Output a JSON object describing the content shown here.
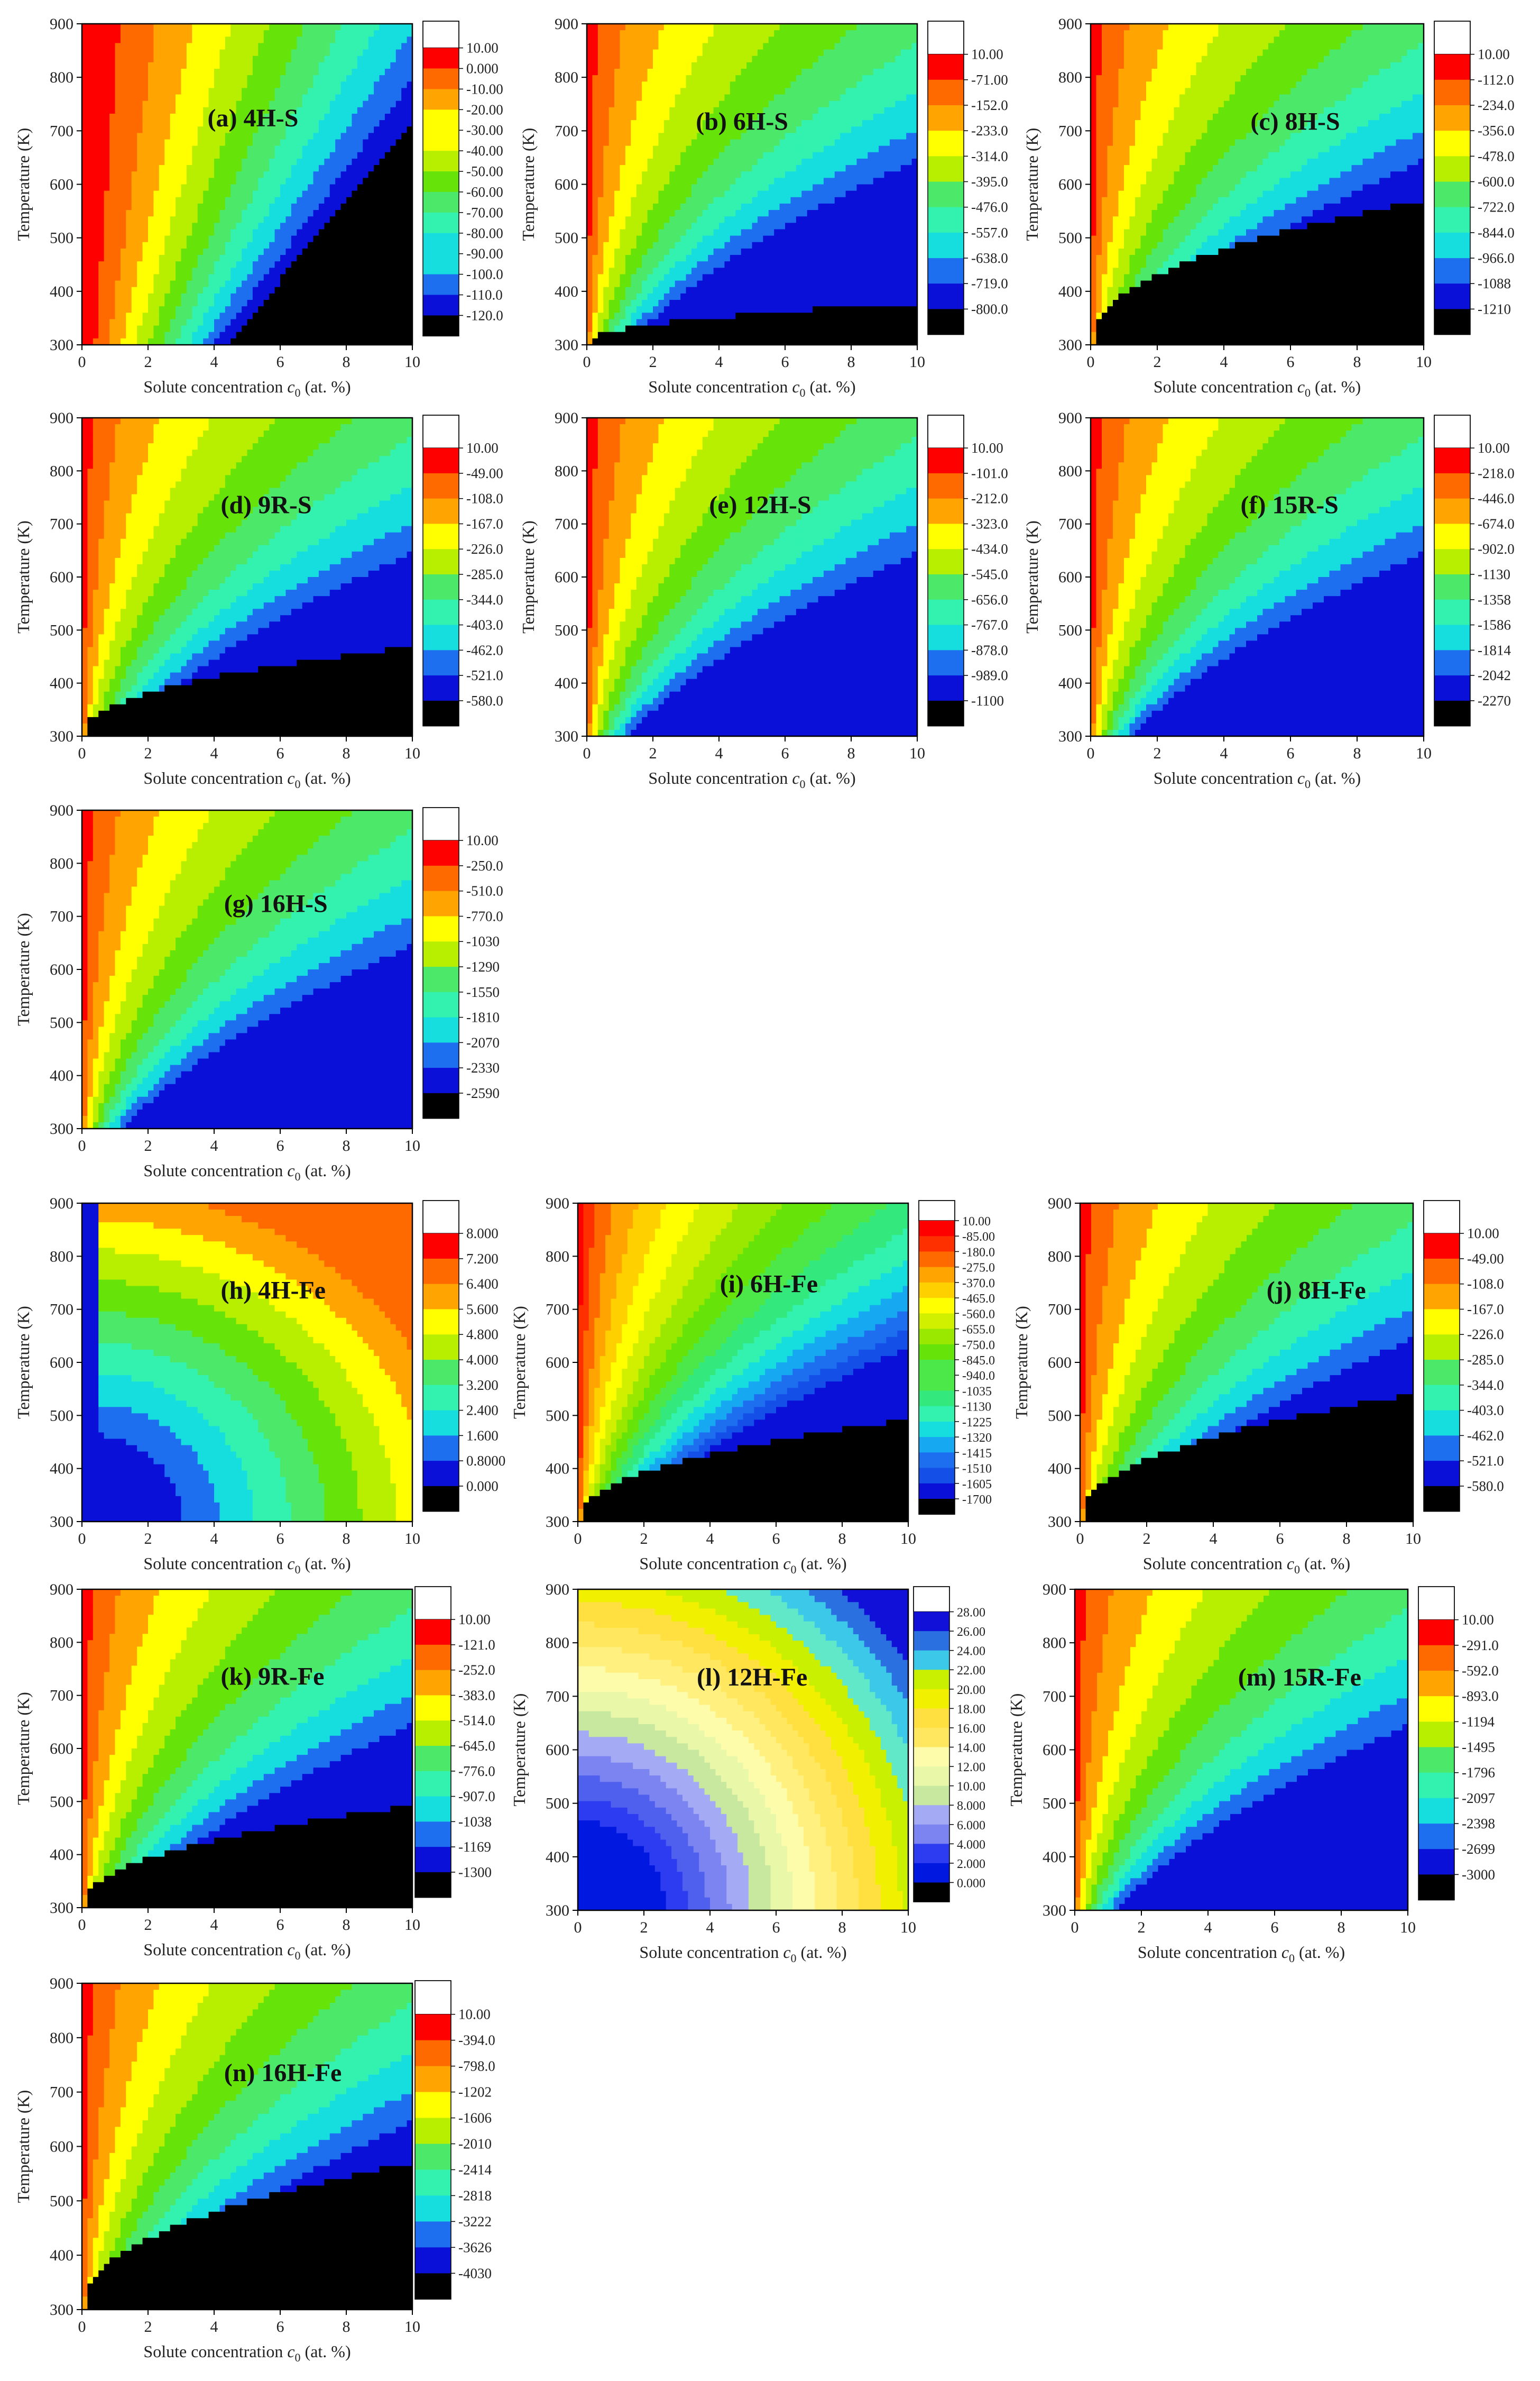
{
  "colors": {
    "ramp12": [
      "#000000",
      "#0a10d8",
      "#1e6ff0",
      "#16dede",
      "#33f2b0",
      "#4ce86a",
      "#66e40a",
      "#b8ee00",
      "#ffff00",
      "#ffa400",
      "#ff6a00",
      "#ff0000"
    ],
    "ramp_fine": [
      "#000000",
      "#0a10d8",
      "#1450e8",
      "#1e6ff0",
      "#16a8f0",
      "#16dede",
      "#33f2b0",
      "#33e87c",
      "#4ce84a",
      "#66e40a",
      "#9ae800",
      "#d0f000",
      "#ffff00",
      "#ffd000",
      "#ffa400",
      "#ff6a00",
      "#ff3000",
      "#ff0000"
    ],
    "ramp_l": [
      "#000000",
      "#0018e0",
      "#2d3cf0",
      "#5060ee",
      "#7b84f0",
      "#a5aaf4",
      "#c8e8a0",
      "#e8f8a8",
      "#fcfcaa",
      "#fff080",
      "#ffe860",
      "#ffe040",
      "#f0f000",
      "#c8f000",
      "#60e8c8",
      "#3cc8e8",
      "#2a70e0",
      "#1010d8"
    ],
    "top_box": "#ffffff"
  },
  "chart_data": [
    {
      "id": "a",
      "type": "heatmap",
      "title": "(a) 4H-S",
      "xlabel": "Solute concentration c0 (at. %)",
      "ylabel": "Temperature (K)",
      "xlim": [
        0,
        10
      ],
      "ylim": [
        300,
        900
      ],
      "xticks": [
        "0",
        "2",
        "4",
        "6",
        "8",
        "10"
      ],
      "yticks": [
        "300",
        "400",
        "500",
        "600",
        "700",
        "800",
        "900"
      ],
      "levels": [
        "10.00",
        "0.000",
        "-10.00",
        "-20.00",
        "-30.00",
        "-40.00",
        "-50.00",
        "-60.00",
        "-70.00",
        "-80.00",
        "-90.00",
        "-100.0",
        "-110.0",
        "-120.0"
      ],
      "palette": "ramp12"
    },
    {
      "id": "b",
      "type": "heatmap",
      "title": "(b) 6H-S",
      "xlabel": "Solute concentration c0 (at. %)",
      "ylabel": "Temperature (K)",
      "xlim": [
        0,
        10
      ],
      "ylim": [
        300,
        900
      ],
      "xticks": [
        "0",
        "2",
        "4",
        "6",
        "8",
        "10"
      ],
      "yticks": [
        "300",
        "400",
        "500",
        "600",
        "700",
        "800",
        "900"
      ],
      "levels": [
        "10.00",
        "-71.00",
        "-152.0",
        "-233.0",
        "-314.0",
        "-395.0",
        "-476.0",
        "-557.0",
        "-638.0",
        "-719.0",
        "-800.0"
      ],
      "palette": "ramp12"
    },
    {
      "id": "c",
      "type": "heatmap",
      "title": "(c) 8H-S",
      "xlabel": "Solute concentration c0 (at. %)",
      "ylabel": "Temperature (K)",
      "xlim": [
        0,
        10
      ],
      "ylim": [
        300,
        900
      ],
      "xticks": [
        "0",
        "2",
        "4",
        "6",
        "8",
        "10"
      ],
      "yticks": [
        "300",
        "400",
        "500",
        "600",
        "700",
        "800",
        "900"
      ],
      "levels": [
        "10.00",
        "-112.0",
        "-234.0",
        "-356.0",
        "-478.0",
        "-600.0",
        "-722.0",
        "-844.0",
        "-966.0",
        "-1088",
        "-1210"
      ],
      "palette": "ramp12"
    },
    {
      "id": "d",
      "type": "heatmap",
      "title": "(d) 9R-S",
      "xlabel": "Solute concentration c0 (at. %)",
      "ylabel": "Temperature (K)",
      "xlim": [
        0,
        10
      ],
      "ylim": [
        300,
        900
      ],
      "xticks": [
        "0",
        "2",
        "4",
        "6",
        "8",
        "10"
      ],
      "yticks": [
        "300",
        "400",
        "500",
        "600",
        "700",
        "800",
        "900"
      ],
      "levels": [
        "10.00",
        "-49.00",
        "-108.0",
        "-167.0",
        "-226.0",
        "-285.0",
        "-344.0",
        "-403.0",
        "-462.0",
        "-521.0",
        "-580.0"
      ],
      "palette": "ramp12"
    },
    {
      "id": "e",
      "type": "heatmap",
      "title": "(e) 12H-S",
      "xlabel": "Solute concentration c0 (at. %)",
      "ylabel": "Temperature (K)",
      "xlim": [
        0,
        10
      ],
      "ylim": [
        300,
        900
      ],
      "xticks": [
        "0",
        "2",
        "4",
        "6",
        "8",
        "10"
      ],
      "yticks": [
        "300",
        "400",
        "500",
        "600",
        "700",
        "800",
        "900"
      ],
      "levels": [
        "10.00",
        "-101.0",
        "-212.0",
        "-323.0",
        "-434.0",
        "-545.0",
        "-656.0",
        "-767.0",
        "-878.0",
        "-989.0",
        "-1100"
      ],
      "palette": "ramp12"
    },
    {
      "id": "f",
      "type": "heatmap",
      "title": "(f) 15R-S",
      "xlabel": "Solute concentration c0 (at. %)",
      "ylabel": "Temperature (K)",
      "xlim": [
        0,
        10
      ],
      "ylim": [
        300,
        900
      ],
      "xticks": [
        "0",
        "2",
        "4",
        "6",
        "8",
        "10"
      ],
      "yticks": [
        "300",
        "400",
        "500",
        "600",
        "700",
        "800",
        "900"
      ],
      "levels": [
        "10.00",
        "-218.0",
        "-446.0",
        "-674.0",
        "-902.0",
        "-1130",
        "-1358",
        "-1586",
        "-1814",
        "-2042",
        "-2270"
      ],
      "palette": "ramp12"
    },
    {
      "id": "g",
      "type": "heatmap",
      "title": "(g) 16H-S",
      "xlabel": "Solute concentration c0 (at. %)",
      "ylabel": "Temperature (K)",
      "xlim": [
        0,
        10
      ],
      "ylim": [
        300,
        900
      ],
      "xticks": [
        "0",
        "2",
        "4",
        "6",
        "8",
        "10"
      ],
      "yticks": [
        "300",
        "400",
        "500",
        "600",
        "700",
        "800",
        "900"
      ],
      "levels": [
        "10.00",
        "-250.0",
        "-510.0",
        "-770.0",
        "-1030",
        "-1290",
        "-1550",
        "-1810",
        "-2070",
        "-2330",
        "-2590"
      ],
      "palette": "ramp12"
    },
    {
      "id": "h",
      "type": "heatmap",
      "title": "(h) 4H-Fe",
      "xlabel": "Solute concentration c0 (at. %)",
      "ylabel": "Temperature (K)",
      "xlim": [
        0,
        10
      ],
      "ylim": [
        300,
        900
      ],
      "xticks": [
        "0",
        "2",
        "4",
        "6",
        "8",
        "10"
      ],
      "yticks": [
        "300",
        "400",
        "500",
        "600",
        "700",
        "800",
        "900"
      ],
      "levels": [
        "8.000",
        "7.200",
        "6.400",
        "5.600",
        "4.800",
        "4.000",
        "3.200",
        "2.400",
        "1.600",
        "0.8000",
        "0.000"
      ],
      "palette": "ramp12"
    },
    {
      "id": "i",
      "type": "heatmap",
      "title": "(i) 6H-Fe",
      "xlabel": "Solute concentration c0 (at. %)",
      "ylabel": "Temperature (K)",
      "xlim": [
        0,
        10
      ],
      "ylim": [
        300,
        900
      ],
      "xticks": [
        "0",
        "2",
        "4",
        "6",
        "8",
        "10"
      ],
      "yticks": [
        "300",
        "400",
        "500",
        "600",
        "700",
        "800",
        "900"
      ],
      "levels": [
        "10.00",
        "-85.00",
        "-180.0",
        "-275.0",
        "-370.0",
        "-465.0",
        "-560.0",
        "-655.0",
        "-750.0",
        "-845.0",
        "-940.0",
        "-1035",
        "-1130",
        "-1225",
        "-1320",
        "-1415",
        "-1510",
        "-1605",
        "-1700"
      ],
      "palette": "ramp_fine"
    },
    {
      "id": "j",
      "type": "heatmap",
      "title": "(j) 8H-Fe",
      "xlabel": "Solute concentration c0 (at. %)",
      "ylabel": "Temperature (K)",
      "xlim": [
        0,
        10
      ],
      "ylim": [
        300,
        900
      ],
      "xticks": [
        "0",
        "2",
        "4",
        "6",
        "8",
        "10"
      ],
      "yticks": [
        "300",
        "400",
        "500",
        "600",
        "700",
        "800",
        "900"
      ],
      "levels": [
        "10.00",
        "-49.00",
        "-108.0",
        "-167.0",
        "-226.0",
        "-285.0",
        "-344.0",
        "-403.0",
        "-462.0",
        "-521.0",
        "-580.0"
      ],
      "palette": "ramp12"
    },
    {
      "id": "k",
      "type": "heatmap",
      "title": "(k) 9R-Fe",
      "xlabel": "Solute concentration c0 (at. %)",
      "ylabel": "Temperature (K)",
      "xlim": [
        0,
        10
      ],
      "ylim": [
        300,
        900
      ],
      "xticks": [
        "0",
        "2",
        "4",
        "6",
        "8",
        "10"
      ],
      "yticks": [
        "300",
        "400",
        "500",
        "600",
        "700",
        "800",
        "900"
      ],
      "levels": [
        "10.00",
        "-121.0",
        "-252.0",
        "-383.0",
        "-514.0",
        "-645.0",
        "-776.0",
        "-907.0",
        "-1038",
        "-1169",
        "-1300"
      ],
      "palette": "ramp12"
    },
    {
      "id": "l",
      "type": "heatmap",
      "title": "(l) 12H-Fe",
      "xlabel": "Solute concentration c0 (at. %)",
      "ylabel": "Temperature (K)",
      "xlim": [
        0,
        10
      ],
      "ylim": [
        300,
        900
      ],
      "xticks": [
        "0",
        "2",
        "4",
        "6",
        "8",
        "10"
      ],
      "yticks": [
        "300",
        "400",
        "500",
        "600",
        "700",
        "800",
        "900"
      ],
      "levels": [
        "28.00",
        "26.00",
        "24.00",
        "22.00",
        "20.00",
        "18.00",
        "16.00",
        "14.00",
        "12.00",
        "10.00",
        "8.000",
        "6.000",
        "4.000",
        "2.000",
        "0.000"
      ],
      "palette": "ramp_l"
    },
    {
      "id": "m",
      "type": "heatmap",
      "title": "(m) 15R-Fe",
      "xlabel": "Solute concentration c0 (at. %)",
      "ylabel": "Temperature (K)",
      "xlim": [
        0,
        10
      ],
      "ylim": [
        300,
        900
      ],
      "xticks": [
        "0",
        "2",
        "4",
        "6",
        "8",
        "10"
      ],
      "yticks": [
        "300",
        "400",
        "500",
        "600",
        "700",
        "800",
        "900"
      ],
      "levels": [
        "10.00",
        "-291.0",
        "-592.0",
        "-893.0",
        "-1194",
        "-1495",
        "-1796",
        "-2097",
        "-2398",
        "-2699",
        "-3000"
      ],
      "palette": "ramp12"
    },
    {
      "id": "n",
      "type": "heatmap",
      "title": "(n) 16H-Fe",
      "xlabel": "Solute concentration c0 (at. %)",
      "ylabel": "Temperature (K)",
      "xlim": [
        0,
        10
      ],
      "ylim": [
        300,
        900
      ],
      "xticks": [
        "0",
        "2",
        "4",
        "6",
        "8",
        "10"
      ],
      "yticks": [
        "300",
        "400",
        "500",
        "600",
        "700",
        "800",
        "900"
      ],
      "levels": [
        "10.00",
        "-394.0",
        "-798.0",
        "-1202",
        "-1606",
        "-2010",
        "-2414",
        "-2818",
        "-3222",
        "-3626",
        "-4030"
      ],
      "palette": "ramp12"
    }
  ]
}
